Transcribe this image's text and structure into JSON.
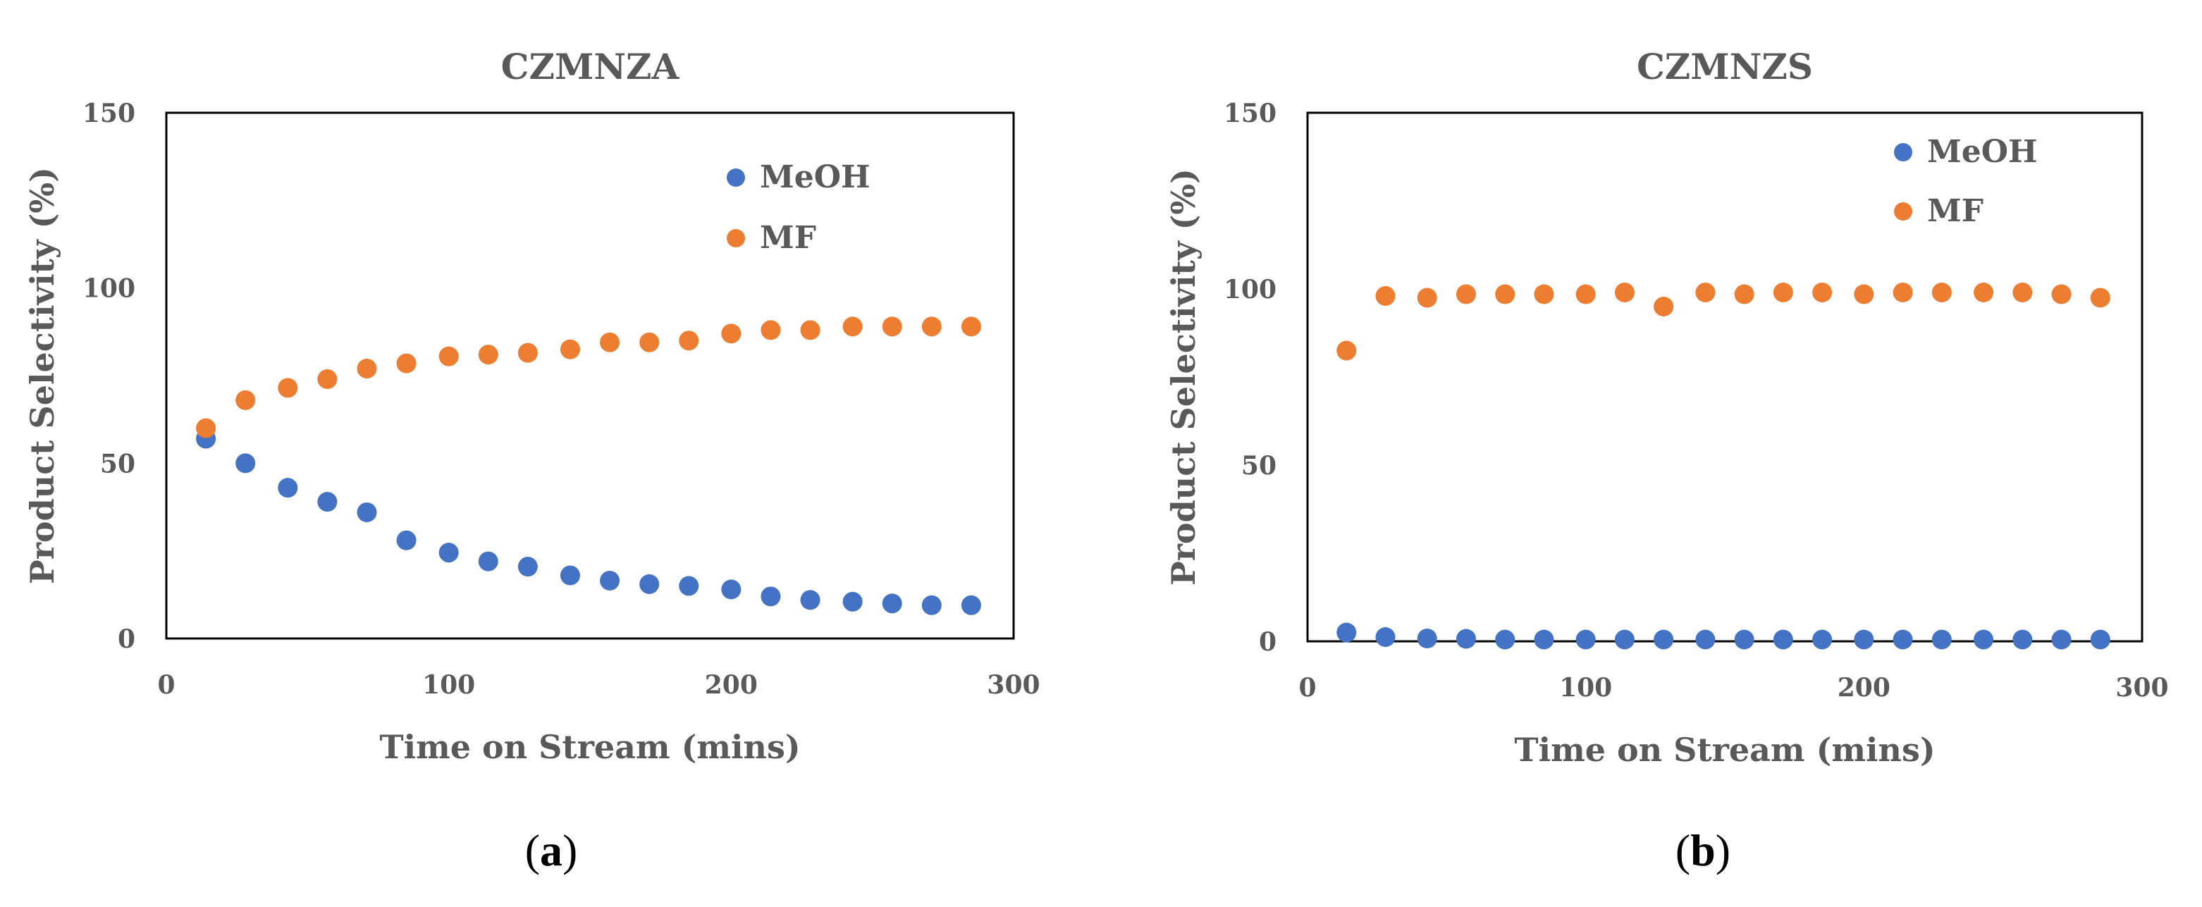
{
  "chart_data": [
    {
      "type": "scatter",
      "title": "CZMNZA",
      "xlabel": "Time on Stream (mins)",
      "ylabel": "Product Selectivity  (%)",
      "xlim": [
        0,
        300
      ],
      "ylim": [
        0,
        150
      ],
      "xticks": [
        "0",
        "100",
        "200",
        "300"
      ],
      "yticks": [
        "0",
        "50",
        "100",
        "150"
      ],
      "legend_position": "top-right",
      "caption": "a",
      "x": [
        14,
        28,
        43,
        57,
        71,
        85,
        100,
        114,
        128,
        143,
        157,
        171,
        185,
        200,
        214,
        228,
        243,
        257,
        271,
        285
      ],
      "series": [
        {
          "name": "MeOH",
          "color": "#4472c4",
          "values": [
            57,
            50,
            43,
            39,
            36,
            28,
            24.5,
            22,
            20.5,
            18,
            16.5,
            15.5,
            15,
            14,
            12,
            11,
            10.5,
            10,
            9.5,
            9.5
          ]
        },
        {
          "name": "MF",
          "color": "#ed7d31",
          "values": [
            60,
            68,
            71.5,
            74,
            77,
            78.5,
            80.5,
            81,
            81.5,
            82.5,
            84.5,
            84.5,
            85,
            87,
            88,
            88,
            89,
            89,
            89,
            89
          ]
        }
      ]
    },
    {
      "type": "scatter",
      "title": "CZMNZS",
      "xlabel": "Time on Stream (mins)",
      "ylabel": "Product Selectivity  (%)",
      "xlim": [
        0,
        300
      ],
      "ylim": [
        0,
        150
      ],
      "xticks": [
        "0",
        "100",
        "200",
        "300"
      ],
      "yticks": [
        "0",
        "50",
        "100",
        "150"
      ],
      "legend_position": "top-right",
      "caption": "b",
      "x": [
        14,
        28,
        43,
        57,
        71,
        85,
        100,
        114,
        128,
        143,
        157,
        171,
        185,
        200,
        214,
        228,
        243,
        257,
        271,
        285
      ],
      "series": [
        {
          "name": "MeOH",
          "color": "#4472c4",
          "values": [
            2.5,
            1.2,
            0.8,
            0.7,
            0.5,
            0.5,
            0.5,
            0.5,
            0.5,
            0.5,
            0.5,
            0.5,
            0.5,
            0.5,
            0.5,
            0.5,
            0.5,
            0.5,
            0.5,
            0.5
          ]
        },
        {
          "name": "MF",
          "color": "#ed7d31",
          "values": [
            82.5,
            98,
            97.5,
            98.5,
            98.5,
            98.5,
            98.5,
            99,
            95,
            99,
            98.5,
            99,
            99,
            98.5,
            99,
            99,
            99,
            99,
            98.5,
            97.5
          ]
        }
      ]
    }
  ]
}
